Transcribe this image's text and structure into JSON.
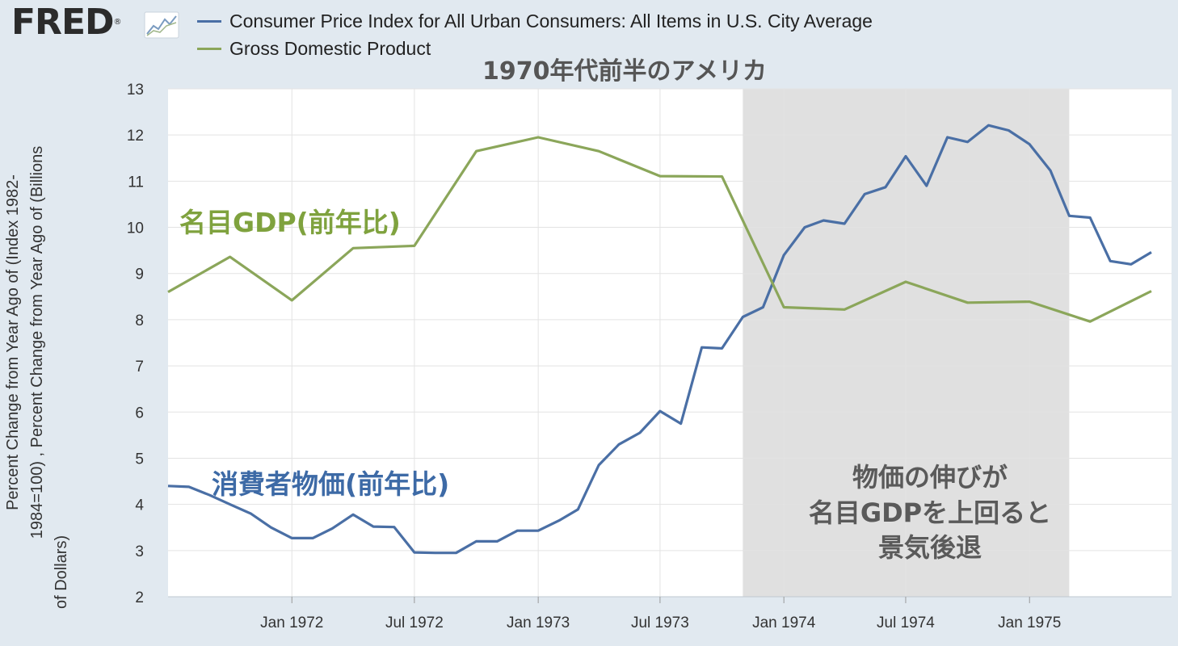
{
  "header": {
    "logo_text": "FRED",
    "logo_mark": "®",
    "logo_icon": "line-chart-icon"
  },
  "colors": {
    "cpi": "#4a6fa5",
    "gdp": "#8ba65a",
    "recession": "#e0e0e0",
    "background": "#e1e9f0",
    "plot": "#ffffff"
  },
  "chart_data": {
    "type": "line",
    "title": "1970年代前半のアメリカ",
    "ylabel_lines": [
      "Percent Change from Year Ago of (Index 1982-",
      "1984=100) , Percent Change from Year Ago of (Billions",
      "of Dollars)"
    ],
    "ylim": [
      2,
      13
    ],
    "yticks": [
      2,
      3,
      4,
      5,
      6,
      7,
      8,
      9,
      10,
      11,
      12,
      13
    ],
    "xlim": [
      "1971-07-01",
      "1975-07-31"
    ],
    "xticks": [
      {
        "date": "1972-01-01",
        "label": "Jan 1972"
      },
      {
        "date": "1972-07-01",
        "label": "Jul 1972"
      },
      {
        "date": "1973-01-01",
        "label": "Jan 1973"
      },
      {
        "date": "1973-07-01",
        "label": "Jul 1973"
      },
      {
        "date": "1974-01-01",
        "label": "Jan 1974"
      },
      {
        "date": "1974-07-01",
        "label": "Jul 1974"
      },
      {
        "date": "1975-01-01",
        "label": "Jan 1975"
      }
    ],
    "grid": true,
    "legend_position": "top",
    "recession": {
      "start": "1973-11-01",
      "end": "1975-03-01"
    },
    "series": [
      {
        "name": "Consumer Price Index for All Urban Consumers: All Items in U.S. City Average",
        "color": "#4a6fa5",
        "points": [
          [
            "1971-07-01",
            4.4
          ],
          [
            "1971-08-01",
            4.38
          ],
          [
            "1971-09-01",
            4.2
          ],
          [
            "1971-10-01",
            4.0
          ],
          [
            "1971-11-01",
            3.8
          ],
          [
            "1971-12-01",
            3.5
          ],
          [
            "1972-01-01",
            3.27
          ],
          [
            "1972-02-01",
            3.27
          ],
          [
            "1972-03-01",
            3.48
          ],
          [
            "1972-04-01",
            3.78
          ],
          [
            "1972-05-01",
            3.52
          ],
          [
            "1972-06-01",
            3.51
          ],
          [
            "1972-07-01",
            2.96
          ],
          [
            "1972-08-01",
            2.95
          ],
          [
            "1972-09-01",
            2.95
          ],
          [
            "1972-10-01",
            3.2
          ],
          [
            "1972-11-01",
            3.2
          ],
          [
            "1972-12-01",
            3.43
          ],
          [
            "1973-01-01",
            3.43
          ],
          [
            "1973-02-01",
            3.65
          ],
          [
            "1973-03-01",
            3.89
          ],
          [
            "1973-04-01",
            4.85
          ],
          [
            "1973-05-01",
            5.3
          ],
          [
            "1973-06-01",
            5.55
          ],
          [
            "1973-07-01",
            6.02
          ],
          [
            "1973-08-01",
            5.75
          ],
          [
            "1973-09-01",
            7.4
          ],
          [
            "1973-10-01",
            7.38
          ],
          [
            "1973-11-01",
            8.06
          ],
          [
            "1973-12-01",
            8.27
          ],
          [
            "1974-01-01",
            9.4
          ],
          [
            "1974-02-01",
            10.0
          ],
          [
            "1974-03-01",
            10.15
          ],
          [
            "1974-04-01",
            10.08
          ],
          [
            "1974-05-01",
            10.72
          ],
          [
            "1974-06-01",
            10.87
          ],
          [
            "1974-07-01",
            11.54
          ],
          [
            "1974-08-01",
            10.9
          ],
          [
            "1974-09-01",
            11.95
          ],
          [
            "1974-10-01",
            11.85
          ],
          [
            "1974-11-01",
            12.21
          ],
          [
            "1974-12-01",
            12.1
          ],
          [
            "1975-01-01",
            11.8
          ],
          [
            "1975-02-01",
            11.23
          ],
          [
            "1975-03-01",
            10.25
          ],
          [
            "1975-04-01",
            10.21
          ],
          [
            "1975-05-01",
            9.27
          ],
          [
            "1975-06-01",
            9.2
          ],
          [
            "1975-07-01",
            9.46
          ]
        ]
      },
      {
        "name": "Gross Domestic Product",
        "color": "#8ba65a",
        "points": [
          [
            "1971-07-01",
            8.6
          ],
          [
            "1971-10-01",
            9.36
          ],
          [
            "1972-01-01",
            8.42
          ],
          [
            "1972-04-01",
            9.55
          ],
          [
            "1972-07-01",
            9.6
          ],
          [
            "1972-10-01",
            11.65
          ],
          [
            "1973-01-01",
            11.95
          ],
          [
            "1973-04-01",
            11.65
          ],
          [
            "1973-07-01",
            11.11
          ],
          [
            "1973-10-01",
            11.1
          ],
          [
            "1974-01-01",
            8.27
          ],
          [
            "1974-04-01",
            8.22
          ],
          [
            "1974-07-01",
            8.82
          ],
          [
            "1974-10-01",
            8.37
          ],
          [
            "1975-01-01",
            8.39
          ],
          [
            "1975-04-01",
            7.96
          ],
          [
            "1975-07-01",
            8.62
          ]
        ]
      }
    ],
    "annotations": [
      {
        "text": "名目GDP(前年比)",
        "color": "#7fa23e"
      },
      {
        "text": "消費者物価(前年比)",
        "color": "#3d6aa6"
      },
      {
        "lines": [
          "物価の伸びが",
          "名目GDPを上回ると",
          "景気後退"
        ],
        "color": "#5a5a5a"
      }
    ]
  }
}
